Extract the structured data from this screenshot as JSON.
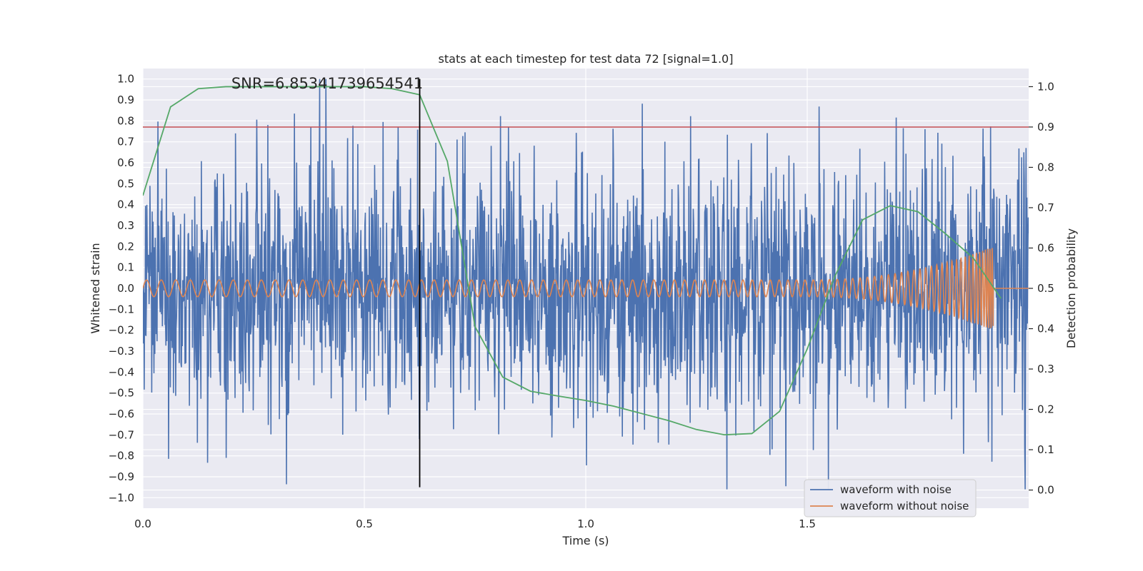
{
  "chart_data": {
    "type": "line",
    "title": "stats at each timestep for test data 72 [signal=1.0]",
    "xlabel": "Time (s)",
    "ylabel": "Whitened strain",
    "y2label": "Detection probability",
    "xlim": [
      0.0,
      2.0
    ],
    "ylim": [
      -1.05,
      1.05
    ],
    "y2lim": [
      -0.045,
      1.045
    ],
    "xticks": [
      0.0,
      0.5,
      1.0,
      1.5
    ],
    "xtick_labels": [
      "0.0",
      "0.5",
      "1.0",
      "1.5"
    ],
    "yticks": [
      1.0,
      0.9,
      0.8,
      0.7,
      0.6,
      0.5,
      0.4,
      0.3,
      0.2,
      0.1,
      0.0,
      -0.1,
      -0.2,
      -0.3,
      -0.4,
      -0.5,
      -0.6,
      -0.7,
      -0.8,
      -0.9,
      -1.0
    ],
    "ytick_labels": [
      "1.0",
      "0.9",
      "0.8",
      "0.7",
      "0.6",
      "0.5",
      "0.4",
      "0.3",
      "0.2",
      "0.1",
      "0.0",
      "−0.1",
      "−0.2",
      "−0.3",
      "−0.4",
      "−0.5",
      "−0.6",
      "−0.7",
      "−0.8",
      "−0.9",
      "−1.0"
    ],
    "y2ticks": [
      1.0,
      0.9,
      0.8,
      0.7,
      0.6,
      0.5,
      0.4,
      0.3,
      0.2,
      0.1,
      0.0
    ],
    "y2tick_labels": [
      "1.0",
      "0.9",
      "0.8",
      "0.7",
      "0.6",
      "0.5",
      "0.4",
      "0.3",
      "0.2",
      "0.1",
      "0.0"
    ],
    "grid": true,
    "legend_position": "bottom-right",
    "annotation": {
      "text": "SNR=6.85341739654541",
      "x": 0.0,
      "y": 1.0
    },
    "vline": {
      "x": 0.625,
      "y_from": -0.95,
      "y_to": 1.0,
      "color": "#000000"
    },
    "hline": {
      "y": 0.9,
      "axis": "right",
      "color": "#c44e52"
    },
    "series": [
      {
        "name": "waveform with noise",
        "axis": "left",
        "color": "#4c72b0",
        "kind": "noise",
        "seed": 72,
        "n_points": 2000,
        "x_range": [
          0.0,
          2.0
        ],
        "std": 0.28,
        "clip": [
          -0.96,
          1.0
        ]
      },
      {
        "name": "waveform without noise",
        "axis": "left",
        "color": "#dd8452",
        "kind": "chirp",
        "n_points": 1000,
        "x_range": [
          0.0,
          1.94
        ],
        "merger_time": 1.92,
        "amp_base": 0.04,
        "amp_peak": 0.2,
        "f_start": 30
      },
      {
        "name": "detection probability",
        "axis": "right",
        "color": "#55a868",
        "kind": "line",
        "x": [
          0.0,
          0.0625,
          0.125,
          0.1875,
          0.25,
          0.3125,
          0.375,
          0.4375,
          0.5,
          0.5625,
          0.625,
          0.6875,
          0.75,
          0.8125,
          0.875,
          0.9375,
          1.0,
          1.0625,
          1.125,
          1.1875,
          1.25,
          1.3125,
          1.375,
          1.4375,
          1.5,
          1.5625,
          1.625,
          1.6875,
          1.75,
          1.8125,
          1.875,
          1.9375
        ],
        "y": [
          0.73,
          0.95,
          0.995,
          1.0,
          1.0,
          1.0,
          1.0,
          1.0,
          1.0,
          0.995,
          0.98,
          0.815,
          0.405,
          0.28,
          0.245,
          0.233,
          0.222,
          0.208,
          0.19,
          0.172,
          0.15,
          0.137,
          0.14,
          0.195,
          0.35,
          0.53,
          0.67,
          0.705,
          0.69,
          0.635,
          0.575,
          0.475
        ]
      }
    ],
    "legend": [
      {
        "label": "waveform with noise",
        "color": "#4c72b0"
      },
      {
        "label": "waveform without noise",
        "color": "#dd8452"
      }
    ]
  }
}
